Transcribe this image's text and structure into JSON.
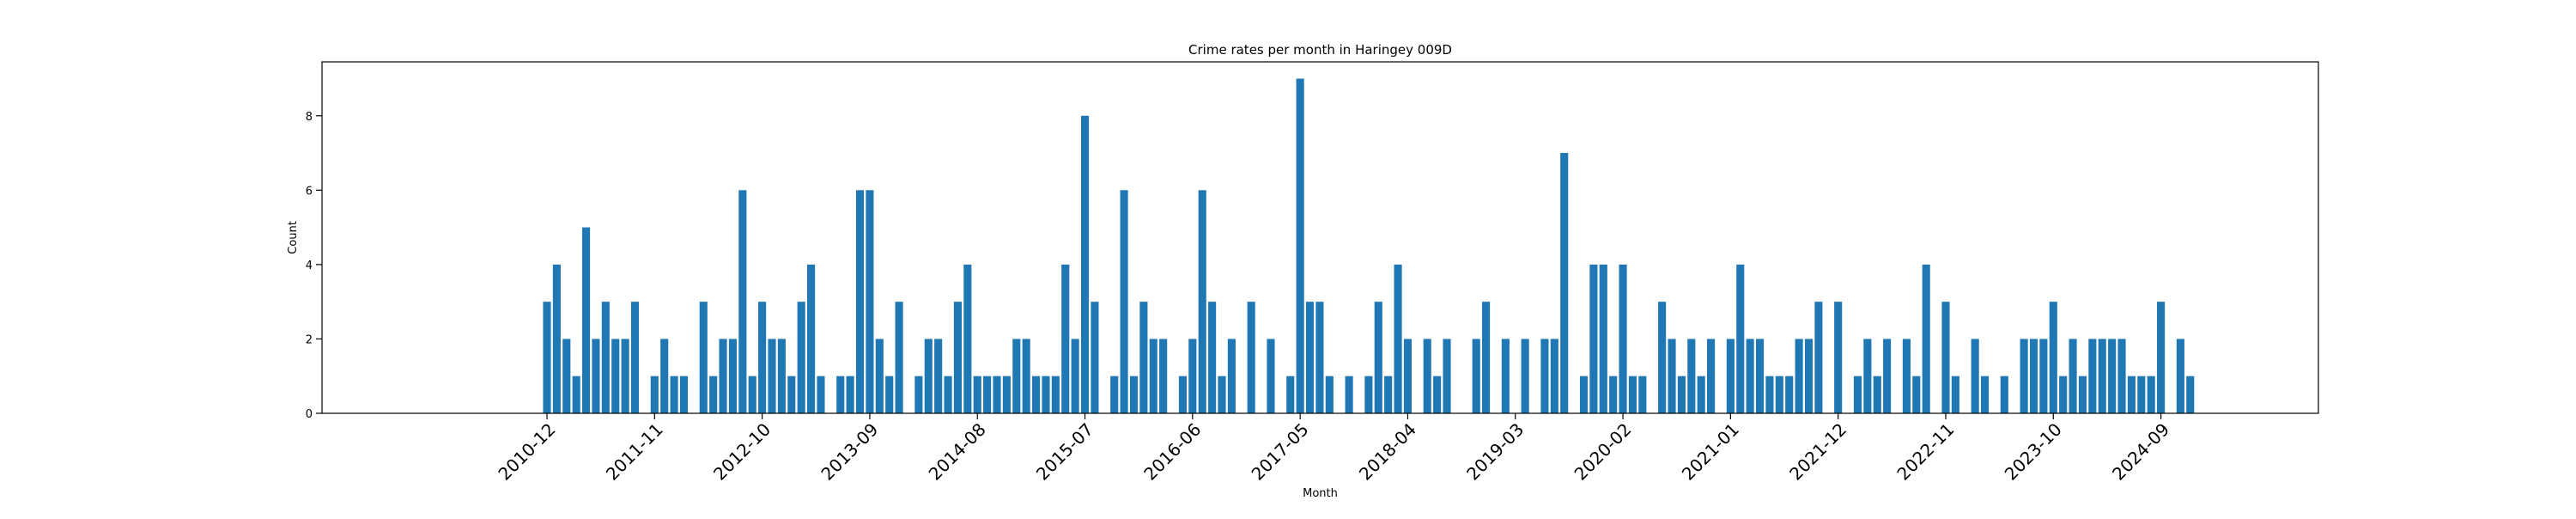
{
  "chart_data": {
    "type": "bar",
    "title": "Crime rates per month in Haringey 009D",
    "xlabel": "Month",
    "ylabel": "Count",
    "ylim": [
      0,
      9.45
    ],
    "yticks": [
      0,
      2,
      4,
      6,
      8
    ],
    "ytick_labels": [
      "0",
      "2",
      "4",
      "6",
      "8"
    ],
    "x_start": "2010-12",
    "xtick_labels": [
      "2010-12",
      "2011-11",
      "2012-10",
      "2013-09",
      "2014-08",
      "2015-07",
      "2016-06",
      "2017-05",
      "2018-04",
      "2019-03",
      "2020-02",
      "2021-01",
      "2021-12",
      "2022-11",
      "2023-10",
      "2024-09"
    ],
    "bar_color": "#1f77b4",
    "grid": false,
    "legend": "none",
    "months": [
      "2010-12",
      "2011-01",
      "2011-02",
      "2011-03",
      "2011-04",
      "2011-05",
      "2011-06",
      "2011-07",
      "2011-08",
      "2011-09",
      "2011-10",
      "2011-11",
      "2011-12",
      "2012-01",
      "2012-02",
      "2012-03",
      "2012-04",
      "2012-05",
      "2012-06",
      "2012-07",
      "2012-08",
      "2012-09",
      "2012-10",
      "2012-11",
      "2012-12",
      "2013-01",
      "2013-02",
      "2013-03",
      "2013-04",
      "2013-05",
      "2013-06",
      "2013-07",
      "2013-08",
      "2013-09",
      "2013-10",
      "2013-11",
      "2013-12",
      "2014-01",
      "2014-02",
      "2014-03",
      "2014-04",
      "2014-05",
      "2014-06",
      "2014-07",
      "2014-08",
      "2014-09",
      "2014-10",
      "2014-11",
      "2014-12",
      "2015-01",
      "2015-02",
      "2015-03",
      "2015-04",
      "2015-05",
      "2015-06",
      "2015-07",
      "2015-08",
      "2015-09",
      "2015-10",
      "2015-11",
      "2015-12",
      "2016-01",
      "2016-02",
      "2016-03",
      "2016-04",
      "2016-05",
      "2016-06",
      "2016-07",
      "2016-08",
      "2016-09",
      "2016-10",
      "2016-11",
      "2016-12",
      "2017-01",
      "2017-02",
      "2017-03",
      "2017-04",
      "2017-05",
      "2017-06",
      "2017-07",
      "2017-08",
      "2017-09",
      "2017-10",
      "2017-11",
      "2017-12",
      "2018-01",
      "2018-02",
      "2018-03",
      "2018-04",
      "2018-05",
      "2018-06",
      "2018-07",
      "2018-08",
      "2018-09",
      "2018-10",
      "2018-11",
      "2018-12",
      "2019-01",
      "2019-02",
      "2019-03",
      "2019-04",
      "2019-05",
      "2019-06",
      "2019-07",
      "2019-08",
      "2019-09",
      "2019-10",
      "2019-11",
      "2019-12",
      "2020-01",
      "2020-02",
      "2020-03",
      "2020-04",
      "2020-05",
      "2020-06",
      "2020-07",
      "2020-08",
      "2020-09",
      "2020-10",
      "2020-11",
      "2020-12",
      "2021-01",
      "2021-02",
      "2021-03",
      "2021-04",
      "2021-05",
      "2021-06",
      "2021-07",
      "2021-08",
      "2021-09",
      "2021-10",
      "2021-11",
      "2021-12",
      "2022-01",
      "2022-02",
      "2022-03",
      "2022-04",
      "2022-05",
      "2022-06",
      "2022-07",
      "2022-08",
      "2022-09",
      "2022-10",
      "2022-11",
      "2022-12",
      "2023-01",
      "2023-02",
      "2023-03",
      "2023-04",
      "2023-05",
      "2023-06",
      "2023-07",
      "2023-08",
      "2023-09",
      "2023-10",
      "2023-11",
      "2023-12",
      "2024-01",
      "2024-02",
      "2024-03",
      "2024-04",
      "2024-05",
      "2024-06",
      "2024-07",
      "2024-08",
      "2024-09",
      "2024-10",
      "2024-11",
      "2024-12",
      "2025-01"
    ],
    "values": [
      3,
      4,
      2,
      1,
      5,
      2,
      3,
      2,
      2,
      3,
      0,
      1,
      2,
      1,
      1,
      0,
      3,
      1,
      2,
      2,
      6,
      1,
      3,
      2,
      2,
      1,
      3,
      4,
      1,
      0,
      1,
      1,
      6,
      6,
      2,
      1,
      3,
      0,
      1,
      2,
      2,
      1,
      3,
      4,
      1,
      1,
      1,
      1,
      2,
      2,
      1,
      1,
      1,
      4,
      2,
      8,
      3,
      0,
      1,
      6,
      1,
      3,
      2,
      2,
      0,
      1,
      2,
      6,
      3,
      1,
      2,
      0,
      3,
      0,
      2,
      0,
      1,
      9,
      3,
      3,
      1,
      0,
      1,
      0,
      1,
      3,
      1,
      4,
      2,
      0,
      2,
      1,
      2,
      0,
      0,
      2,
      3,
      0,
      2,
      0,
      2,
      0,
      2,
      2,
      7,
      0,
      1,
      4,
      4,
      1,
      4,
      1,
      1,
      0,
      3,
      2,
      1,
      2,
      1,
      2,
      0,
      2,
      4,
      2,
      2,
      1,
      1,
      1,
      2,
      2,
      3,
      0,
      3,
      0,
      1,
      2,
      1,
      2,
      0,
      2,
      1,
      4,
      0,
      3,
      1,
      0,
      2,
      1,
      0,
      1,
      0,
      2,
      2,
      2,
      3,
      1,
      2,
      1,
      2,
      2,
      2,
      2,
      1,
      1,
      1,
      3,
      0,
      2,
      1,
      0
    ]
  }
}
